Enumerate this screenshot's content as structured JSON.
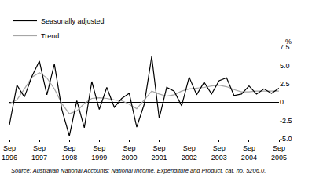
{
  "chart_data": {
    "type": "line",
    "y_label": "%",
    "source": "Source: Australian National Accounts: National Income, Expenditure and Product, cat. no. 5206.0.",
    "categories": [
      "Sep 1996",
      null,
      null,
      null,
      "Sep 1997",
      null,
      null,
      null,
      "Sep 1998",
      null,
      null,
      null,
      "Sep 1999",
      null,
      null,
      null,
      "Sep 2000",
      null,
      null,
      null,
      "Sep 2001",
      null,
      null,
      null,
      "Sep 2002",
      null,
      null,
      null,
      "Sep 2003",
      null,
      null,
      null,
      "Sep 2004",
      null,
      null,
      null,
      "Sep 2005"
    ],
    "series": [
      {
        "name": "Seasonally adjusted",
        "color": "#000000",
        "values": [
          -3.1,
          2.3,
          0.7,
          3.5,
          5.6,
          1.0,
          5.2,
          -1.0,
          -4.6,
          0.2,
          -3.5,
          2.8,
          -1.0,
          2.0,
          -0.7,
          0.5,
          1.2,
          -3.4,
          -0.3,
          6.2,
          -2.2,
          2.0,
          1.5,
          -0.5,
          3.4,
          1.0,
          2.7,
          1.1,
          2.9,
          3.3,
          0.9,
          1.1,
          2.2,
          1.1,
          1.8,
          1.2,
          1.9
        ]
      },
      {
        "name": "Trend",
        "color": "#a6a6a6",
        "values": [
          -0.2,
          0.3,
          1.8,
          3.4,
          4.0,
          3.3,
          1.8,
          -0.2,
          -1.6,
          -1.2,
          -0.2,
          0.5,
          0.6,
          0.5,
          0.3,
          0.2,
          -0.3,
          -0.9,
          0.3,
          1.5,
          1.1,
          0.8,
          1.0,
          1.5,
          1.8,
          1.9,
          2.0,
          2.2,
          2.3,
          2.1,
          1.7,
          1.4,
          1.4,
          1.5,
          1.5,
          1.5,
          1.5
        ]
      }
    ],
    "ylim": [
      -5,
      7.5
    ],
    "yticks": [
      {
        "value": -5,
        "label": "-5.0"
      },
      -2.5,
      0,
      2.5,
      {
        "value": 5,
        "label": "5.0"
      },
      7.5
    ],
    "grid": false,
    "legend": "top-left"
  }
}
